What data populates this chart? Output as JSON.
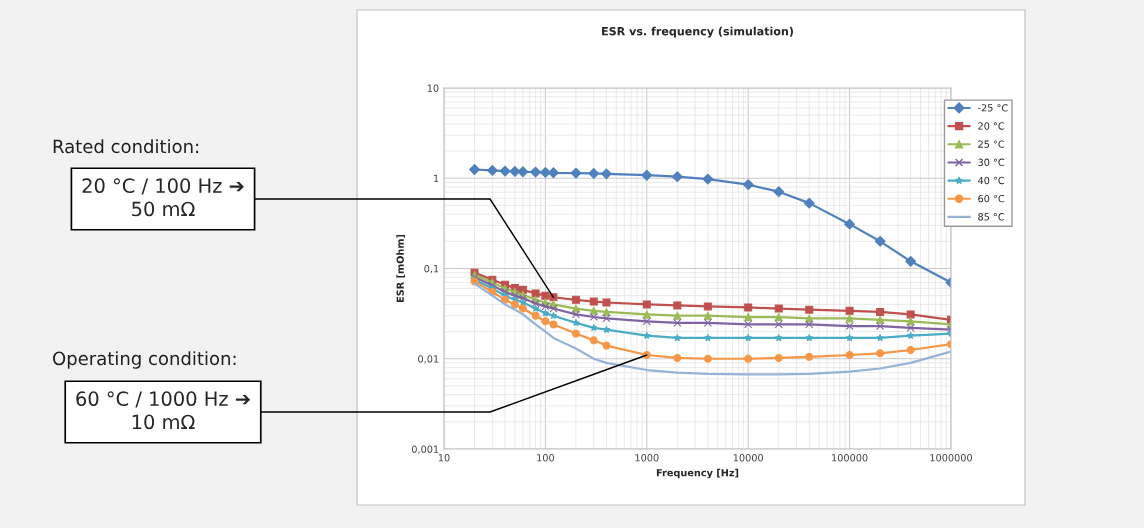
{
  "chart_data": {
    "type": "line",
    "title": "ESR vs. frequency (simulation)",
    "xlabel": "Frequency [Hz]",
    "ylabel": "ESR [mOhm]",
    "log": "xy",
    "grid": true,
    "legend": "top right",
    "xlim": [
      10,
      1000000
    ],
    "xticks": [
      10,
      100,
      1000,
      10000,
      100000,
      1000000
    ],
    "ylim": [
      0.001,
      10
    ],
    "yticks": [
      {
        "value": 0.001,
        "label": "0,001"
      },
      {
        "value": 0.01,
        "label": "0,01"
      },
      {
        "value": 0.1,
        "label": "0,1"
      },
      1,
      10
    ],
    "x": [
      20,
      30,
      40,
      50,
      60,
      80,
      100,
      120,
      200,
      300,
      400,
      1000,
      2000,
      4000,
      10000,
      20000,
      40000,
      100000,
      200000,
      400000,
      1000000
    ],
    "series": [
      {
        "name": "-25 °C",
        "color": "#4f81bd",
        "marker": "diamond",
        "values": [
          1.25,
          1.22,
          1.2,
          1.19,
          1.18,
          1.17,
          1.16,
          1.15,
          1.14,
          1.13,
          1.12,
          1.08,
          1.04,
          0.98,
          0.85,
          0.71,
          0.53,
          0.31,
          0.2,
          0.12,
          0.07
        ]
      },
      {
        "name": "20 °C",
        "color": "#c0504d",
        "marker": "square",
        "values": [
          0.09,
          0.075,
          0.066,
          0.061,
          0.058,
          0.053,
          0.05,
          0.048,
          0.045,
          0.043,
          0.042,
          0.04,
          0.039,
          0.038,
          0.037,
          0.036,
          0.035,
          0.034,
          0.033,
          0.031,
          0.027
        ]
      },
      {
        "name": "25 °C",
        "color": "#9bbb59",
        "marker": "triangle",
        "values": [
          0.085,
          0.07,
          0.06,
          0.055,
          0.051,
          0.045,
          0.042,
          0.04,
          0.036,
          0.034,
          0.033,
          0.031,
          0.03,
          0.03,
          0.029,
          0.029,
          0.028,
          0.028,
          0.027,
          0.026,
          0.024
        ]
      },
      {
        "name": "30 °C",
        "color": "#8064a2",
        "marker": "cross",
        "values": [
          0.08,
          0.065,
          0.055,
          0.05,
          0.047,
          0.041,
          0.038,
          0.036,
          0.031,
          0.029,
          0.028,
          0.026,
          0.025,
          0.025,
          0.024,
          0.024,
          0.024,
          0.023,
          0.023,
          0.022,
          0.021
        ]
      },
      {
        "name": "40 °C",
        "color": "#4bacc6",
        "marker": "star",
        "values": [
          0.075,
          0.06,
          0.05,
          0.045,
          0.042,
          0.036,
          0.032,
          0.03,
          0.025,
          0.022,
          0.021,
          0.018,
          0.017,
          0.017,
          0.017,
          0.017,
          0.017,
          0.017,
          0.017,
          0.018,
          0.019
        ]
      },
      {
        "name": "60 °C",
        "color": "#f79646",
        "marker": "circle",
        "values": [
          0.072,
          0.055,
          0.045,
          0.04,
          0.036,
          0.03,
          0.026,
          0.024,
          0.019,
          0.016,
          0.014,
          0.011,
          0.0102,
          0.01,
          0.01,
          0.0102,
          0.0105,
          0.011,
          0.0115,
          0.0125,
          0.0145
        ]
      },
      {
        "name": "85 °C",
        "color": "#95b3d7",
        "marker": "none",
        "values": [
          0.068,
          0.05,
          0.04,
          0.035,
          0.031,
          0.024,
          0.02,
          0.017,
          0.013,
          0.01,
          0.009,
          0.0075,
          0.007,
          0.0068,
          0.0067,
          0.0067,
          0.0068,
          0.0072,
          0.0078,
          0.009,
          0.012
        ]
      }
    ],
    "annotations": [
      "Rated condition:",
      {
        "text": "20 °C / 100 Hz ➔\n50 mΩ",
        "x": 120,
        "y": 0.048
      },
      "Operating condition:",
      {
        "text": "60 °C / 1000 Hz ➔\n10 mΩ",
        "x": 1000,
        "y": 0.011
      }
    ]
  }
}
